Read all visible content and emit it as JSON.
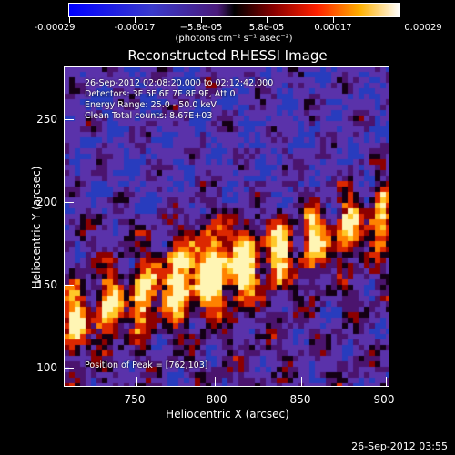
{
  "colorbar": {
    "labels": [
      "-0.00029",
      "-0.00017",
      "−5.8e-05",
      "5.8e-05",
      "0.00017",
      "0.00029"
    ],
    "units": "(photons cm⁻² s⁻¹ asec⁻²)"
  },
  "title": "Reconstructed RHESSI Image",
  "info": {
    "time": "26-Sep-2012 02:08:20.000 to 02:12:42.000",
    "detectors": "Detectors: 3F 5F 6F 7F 8F 9F, Att 0",
    "energy": "Energy Range: 25.0 - 50.0 keV",
    "clean": "Clean     Total counts: 8.67E+03",
    "position": "Position of Peak = [762,103]"
  },
  "axes": {
    "x_ticks": [
      "750",
      "800",
      "850",
      "900"
    ],
    "y_ticks": [
      "250",
      "200",
      "150",
      "100"
    ],
    "xlabel": "Heliocentric X (arcsec)",
    "ylabel": "Heliocentric Y (arcsec)"
  },
  "timestamp": "26-Sep-2012 03:55"
}
